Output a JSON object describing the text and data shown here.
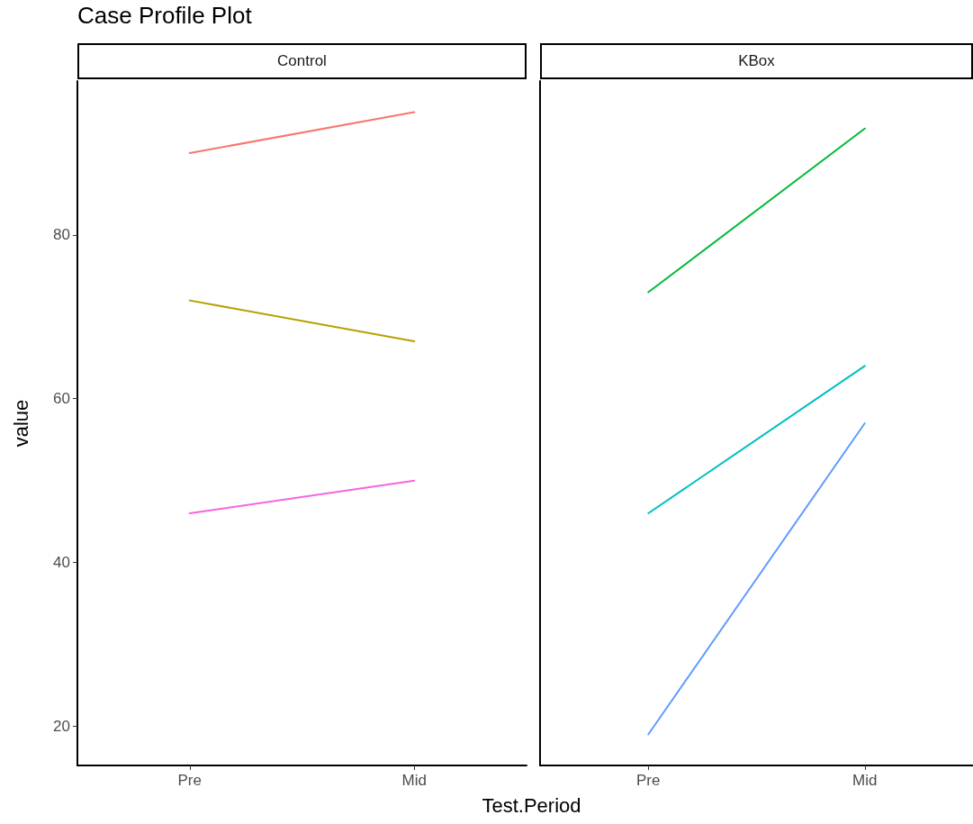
{
  "chart_data": [
    {
      "type": "line",
      "title": "Case Profile Plot",
      "subtitle": "Control",
      "xlabel": "Test.Period",
      "ylabel": "value",
      "categories": [
        "Pre",
        "Mid"
      ],
      "marker": "none",
      "grid": false,
      "ylim": [
        15.2,
        98.8
      ],
      "yticks": [
        20,
        40,
        60,
        80
      ],
      "series": [
        {
          "color": "#f8766d",
          "values": [
            90,
            95
          ]
        },
        {
          "color": "#b79f00",
          "values": [
            72,
            67
          ]
        },
        {
          "color": "#f564e3",
          "values": [
            46,
            50
          ]
        }
      ]
    },
    {
      "type": "line",
      "subtitle": "KBox",
      "categories": [
        "Pre",
        "Mid"
      ],
      "marker": "none",
      "grid": false,
      "ylim": [
        15.2,
        98.8
      ],
      "yticks": [
        20,
        40,
        60,
        80
      ],
      "tick_labels": "x",
      "series": [
        {
          "color": "#00ba38",
          "values": [
            73,
            93
          ]
        },
        {
          "color": "#00bfc4",
          "values": [
            46,
            64
          ]
        },
        {
          "color": "#619cff",
          "values": [
            19,
            57
          ]
        }
      ]
    }
  ]
}
